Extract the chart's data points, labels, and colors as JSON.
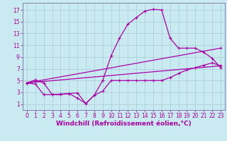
{
  "bg_color": "#c8eaf0",
  "grid_color": "#a8ccd8",
  "line_color": "#aa00aa",
  "marker": "+",
  "markersize": 3,
  "linewidth": 0.9,
  "xlabel": "Windchill (Refroidissement éolien,°C)",
  "xlabel_fontsize": 6.5,
  "xticks": [
    0,
    1,
    2,
    3,
    4,
    5,
    6,
    7,
    8,
    9,
    10,
    11,
    12,
    13,
    14,
    15,
    16,
    17,
    18,
    19,
    20,
    21,
    22,
    23
  ],
  "yticks": [
    1,
    3,
    5,
    7,
    9,
    11,
    13,
    15,
    17
  ],
  "xlim": [
    -0.5,
    23.5
  ],
  "ylim": [
    0,
    18.2
  ],
  "tick_fontsize": 5.5,
  "series": [
    {
      "x": [
        0,
        1,
        2,
        3,
        4,
        5,
        6,
        7,
        8,
        9,
        10,
        11,
        12,
        13,
        14,
        15,
        16,
        17,
        18,
        19,
        20,
        21,
        22,
        23
      ],
      "y": [
        4.6,
        5.1,
        4.6,
        2.6,
        2.6,
        2.8,
        2.9,
        1.1,
        2.5,
        5.0,
        9.2,
        12.2,
        14.6,
        15.7,
        16.8,
        17.1,
        17.0,
        12.2,
        10.5,
        10.5,
        10.5,
        9.8,
        8.8,
        7.2
      ]
    },
    {
      "x": [
        0,
        1,
        2,
        3,
        4,
        5,
        6,
        7,
        8,
        9,
        10,
        11,
        12,
        13,
        14,
        15,
        16,
        17,
        18,
        19,
        20,
        21,
        22,
        23
      ],
      "y": [
        4.6,
        4.4,
        2.6,
        2.6,
        2.7,
        2.8,
        2.0,
        1.1,
        2.5,
        3.2,
        5.0,
        5.0,
        5.0,
        5.0,
        5.0,
        5.0,
        5.0,
        5.5,
        6.2,
        6.8,
        7.2,
        7.6,
        8.0,
        7.5
      ]
    },
    {
      "x": [
        0,
        23
      ],
      "y": [
        4.6,
        10.5
      ]
    },
    {
      "x": [
        0,
        23
      ],
      "y": [
        4.6,
        7.5
      ]
    }
  ]
}
